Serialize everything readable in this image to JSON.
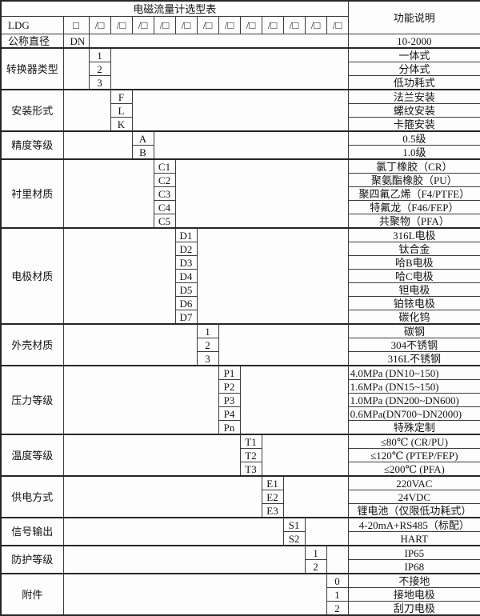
{
  "title": "电磁流量计选型表",
  "function_header": "功能说明",
  "model_row": {
    "label": "LDG",
    "dn_box": "□",
    "slot": "/□",
    "slot_count": 12
  },
  "diameter_row": {
    "label": "公称直径",
    "code": "DN",
    "desc": "10-2000"
  },
  "sections": [
    {
      "label": "转换器类型",
      "options": [
        {
          "code": "1",
          "desc": "一体式"
        },
        {
          "code": "2",
          "desc": "分体式"
        },
        {
          "code": "3",
          "desc": "低功耗式"
        }
      ]
    },
    {
      "label": "安装形式",
      "options": [
        {
          "code": "F",
          "desc": "法兰安装"
        },
        {
          "code": "L",
          "desc": "螺纹安装"
        },
        {
          "code": "K",
          "desc": "卡箍安装"
        }
      ]
    },
    {
      "label": "精度等级",
      "options": [
        {
          "code": "A",
          "desc": "0.5级"
        },
        {
          "code": "B",
          "desc": "1.0级"
        }
      ]
    },
    {
      "label": "衬里材质",
      "options": [
        {
          "code": "C1",
          "desc": "氯丁橡胶（CR）"
        },
        {
          "code": "C2",
          "desc": "聚氨酯橡胶（PU）"
        },
        {
          "code": "C3",
          "desc": "聚四氟乙烯（F4/PTFE）"
        },
        {
          "code": "C4",
          "desc": "特氟龙（F46/FEP）"
        },
        {
          "code": "C5",
          "desc": "共聚物（PFA）"
        }
      ]
    },
    {
      "label": "电极材质",
      "options": [
        {
          "code": "D1",
          "desc": "316L电极"
        },
        {
          "code": "D2",
          "desc": "钛合金"
        },
        {
          "code": "D3",
          "desc": "哈B电极"
        },
        {
          "code": "D4",
          "desc": "哈C电极"
        },
        {
          "code": "D5",
          "desc": "钽电极"
        },
        {
          "code": "D6",
          "desc": "铂铱电极"
        },
        {
          "code": "D7",
          "desc": "碳化钨"
        }
      ]
    },
    {
      "label": "外壳材质",
      "options": [
        {
          "code": "1",
          "desc": "碳钢"
        },
        {
          "code": "2",
          "desc": "304不锈钢"
        },
        {
          "code": "3",
          "desc": "316L不锈钢"
        }
      ]
    },
    {
      "label": "压力等级",
      "options": [
        {
          "code": "P1",
          "desc": "4.0MPa (DN10~150)"
        },
        {
          "code": "P2",
          "desc": "1.6MPa (DN15~150)"
        },
        {
          "code": "P3",
          "desc": "1.0MPa (DN200~DN600)"
        },
        {
          "code": "P4",
          "desc": "0.6MPa(DN700~DN2000)"
        },
        {
          "code": "Pn",
          "desc": "特殊定制"
        }
      ]
    },
    {
      "label": "温度等级",
      "options": [
        {
          "code": "T1",
          "desc": "≤80℃ (CR/PU)"
        },
        {
          "code": "T2",
          "desc": "≤120℃ (PTEP/FEP)"
        },
        {
          "code": "T3",
          "desc": "≤200℃ (PFA)"
        }
      ]
    },
    {
      "label": "供电方式",
      "options": [
        {
          "code": "E1",
          "desc": "220VAC"
        },
        {
          "code": "E2",
          "desc": "24VDC"
        },
        {
          "code": "E3",
          "desc": "锂电池（仅限低功耗式）"
        }
      ]
    },
    {
      "label": "信号输出",
      "options": [
        {
          "code": "S1",
          "desc": "4-20mA+RS485（标配）"
        },
        {
          "code": "S2",
          "desc": "HART"
        }
      ]
    },
    {
      "label": "防护等级",
      "options": [
        {
          "code": "1",
          "desc": "IP65"
        },
        {
          "code": "2",
          "desc": "IP68"
        }
      ]
    },
    {
      "label": "附件",
      "options": [
        {
          "code": "0",
          "desc": "不接地"
        },
        {
          "code": "1",
          "desc": "接地电极"
        },
        {
          "code": "2",
          "desc": "刮刀电极"
        }
      ]
    }
  ]
}
